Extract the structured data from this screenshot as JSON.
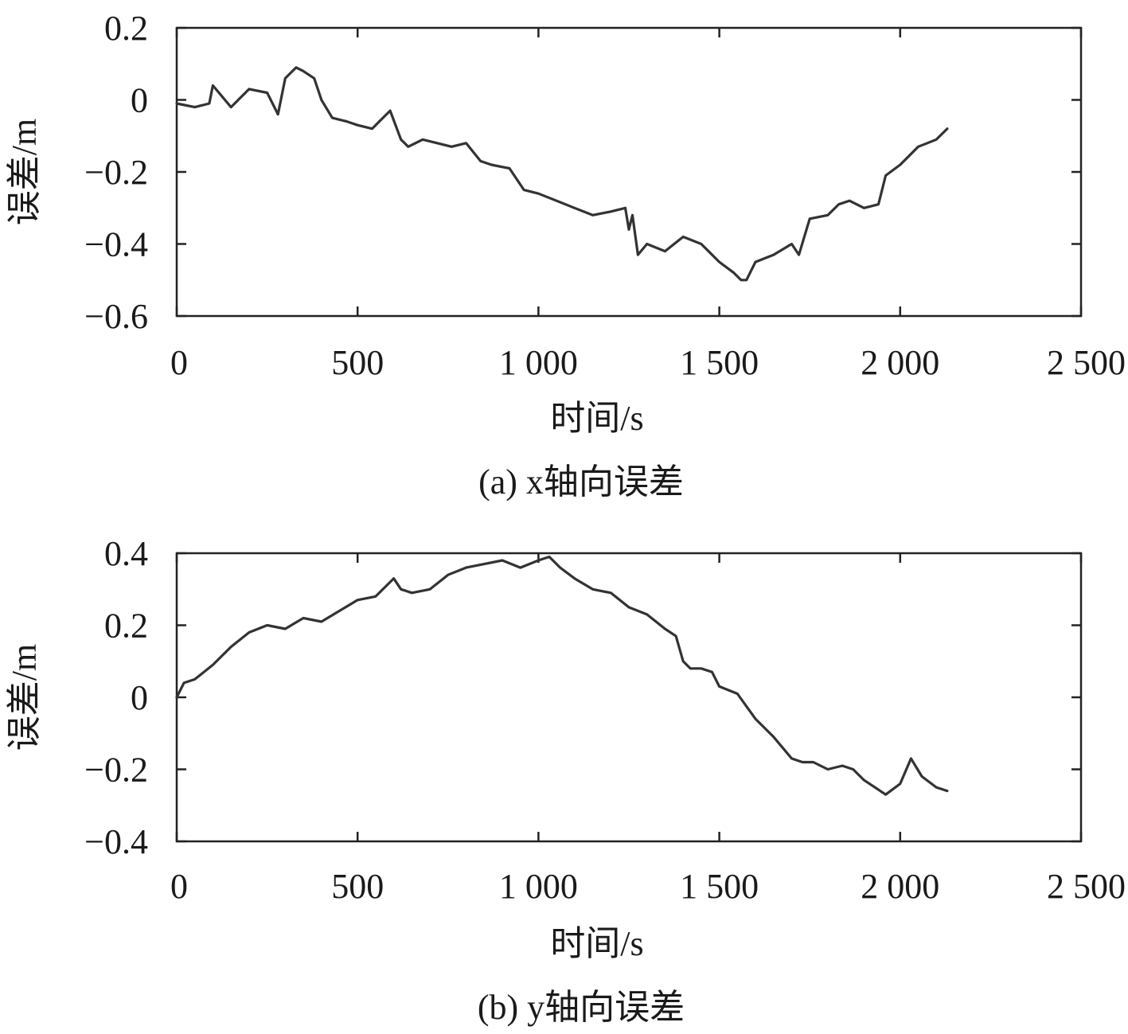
{
  "colors": {
    "line": "#333333",
    "axis": "#222222"
  },
  "chart_data": [
    {
      "type": "line",
      "caption": "(a) x轴向误差",
      "xlabel": "时间/s",
      "ylabel": "误差/m",
      "xlim": [
        0,
        2500
      ],
      "ylim": [
        -0.6,
        0.2
      ],
      "xticks": [
        0,
        500,
        1000,
        1500,
        2000,
        2500
      ],
      "xtick_labels": [
        "0",
        "500",
        "1 000",
        "1 500",
        "2 000",
        "2 500"
      ],
      "yticks": [
        0.2,
        0,
        -0.2,
        -0.4,
        -0.6
      ],
      "ytick_labels": [
        "0.2",
        "0",
        "−0.2",
        "−0.4",
        "−0.6"
      ],
      "grid": false,
      "series": [
        {
          "x": [
            0,
            50,
            90,
            100,
            150,
            200,
            250,
            280,
            300,
            330,
            350,
            380,
            400,
            430,
            470,
            500,
            540,
            570,
            590,
            620,
            640,
            680,
            720,
            760,
            800,
            840,
            870,
            920,
            960,
            1000,
            1050,
            1100,
            1150,
            1200,
            1240,
            1250,
            1260,
            1275,
            1300,
            1350,
            1400,
            1450,
            1500,
            1540,
            1560,
            1575,
            1600,
            1650,
            1700,
            1720,
            1750,
            1800,
            1830,
            1860,
            1900,
            1940,
            1960,
            2000,
            2050,
            2100,
            2130
          ],
          "y": [
            -0.01,
            -0.02,
            -0.01,
            0.04,
            -0.02,
            0.03,
            0.02,
            -0.04,
            0.06,
            0.09,
            0.08,
            0.06,
            0.0,
            -0.05,
            -0.06,
            -0.07,
            -0.08,
            -0.05,
            -0.03,
            -0.11,
            -0.13,
            -0.11,
            -0.12,
            -0.13,
            -0.12,
            -0.17,
            -0.18,
            -0.19,
            -0.25,
            -0.26,
            -0.28,
            -0.3,
            -0.32,
            -0.31,
            -0.3,
            -0.36,
            -0.32,
            -0.43,
            -0.4,
            -0.42,
            -0.38,
            -0.4,
            -0.45,
            -0.48,
            -0.5,
            -0.5,
            -0.45,
            -0.43,
            -0.4,
            -0.43,
            -0.33,
            -0.32,
            -0.29,
            -0.28,
            -0.3,
            -0.29,
            -0.21,
            -0.18,
            -0.13,
            -0.11,
            -0.08
          ]
        }
      ]
    },
    {
      "type": "line",
      "caption": "(b) y轴向误差",
      "xlabel": "时间/s",
      "ylabel": "误差/m",
      "xlim": [
        0,
        2500
      ],
      "ylim": [
        -0.4,
        0.4
      ],
      "xticks": [
        0,
        500,
        1000,
        1500,
        2000,
        2500
      ],
      "xtick_labels": [
        "0",
        "500",
        "1 000",
        "1 500",
        "2 000",
        "2 500"
      ],
      "yticks": [
        0.4,
        0.2,
        0,
        -0.2,
        -0.4
      ],
      "ytick_labels": [
        "0.4",
        "0.2",
        "0",
        "−0.2",
        "−0.4"
      ],
      "grid": false,
      "series": [
        {
          "x": [
            0,
            20,
            50,
            100,
            150,
            200,
            250,
            300,
            350,
            400,
            450,
            500,
            550,
            600,
            620,
            650,
            700,
            750,
            800,
            850,
            900,
            950,
            1000,
            1030,
            1060,
            1100,
            1150,
            1200,
            1250,
            1300,
            1350,
            1380,
            1400,
            1420,
            1450,
            1480,
            1500,
            1550,
            1600,
            1650,
            1700,
            1730,
            1760,
            1800,
            1840,
            1870,
            1900,
            1930,
            1960,
            2000,
            2030,
            2060,
            2100,
            2130
          ],
          "y": [
            0.0,
            0.04,
            0.05,
            0.09,
            0.14,
            0.18,
            0.2,
            0.19,
            0.22,
            0.21,
            0.24,
            0.27,
            0.28,
            0.33,
            0.3,
            0.29,
            0.3,
            0.34,
            0.36,
            0.37,
            0.38,
            0.36,
            0.38,
            0.39,
            0.36,
            0.33,
            0.3,
            0.29,
            0.25,
            0.23,
            0.19,
            0.17,
            0.1,
            0.08,
            0.08,
            0.07,
            0.03,
            0.01,
            -0.06,
            -0.11,
            -0.17,
            -0.18,
            -0.18,
            -0.2,
            -0.19,
            -0.2,
            -0.23,
            -0.25,
            -0.27,
            -0.24,
            -0.17,
            -0.22,
            -0.25,
            -0.26
          ]
        }
      ]
    }
  ]
}
